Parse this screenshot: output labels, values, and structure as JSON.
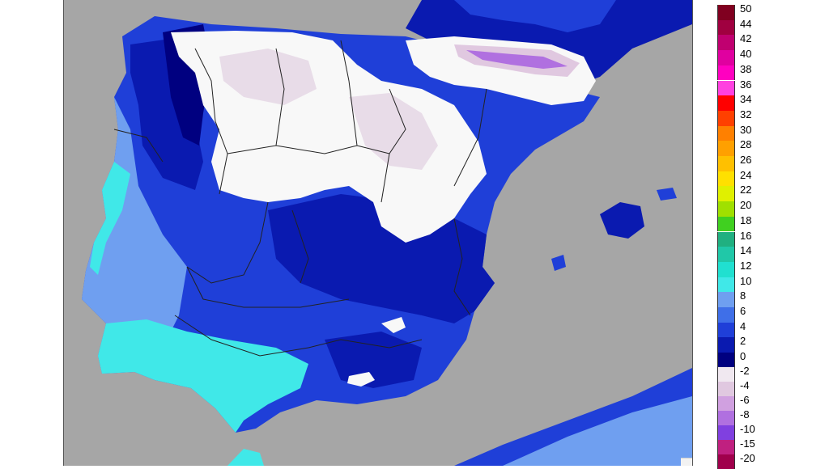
{
  "colors": {
    "background": "#a6a6a6",
    "land_frost_white": "#f8f8f8",
    "land_frost_lilac": "#e0d0e0",
    "land_frost_purple": "#b080d0",
    "temp_0_2": "#000080",
    "temp_2_4": "#0a1ab0",
    "temp_4_6": "#1f3fd8",
    "temp_6_8": "#3f6fe8",
    "temp_8_10": "#6f9ff0",
    "temp_10_12": "#40e8e8",
    "border_lines": "#222222"
  },
  "legend": {
    "positive_scale": [
      {
        "label": "50",
        "color": "#800020"
      },
      {
        "label": "44",
        "color": "#a00040"
      },
      {
        "label": "42",
        "color": "#c00070"
      },
      {
        "label": "40",
        "color": "#e000a0"
      },
      {
        "label": "38",
        "color": "#ff00c0"
      },
      {
        "label": "36",
        "color": "#ff40e0"
      },
      {
        "label": "34",
        "color": "#ff0000"
      },
      {
        "label": "32",
        "color": "#ff4000"
      },
      {
        "label": "30",
        "color": "#ff8000"
      },
      {
        "label": "28",
        "color": "#ffa000"
      },
      {
        "label": "26",
        "color": "#ffc000"
      },
      {
        "label": "24",
        "color": "#ffe000"
      },
      {
        "label": "22",
        "color": "#e0f000"
      },
      {
        "label": "20",
        "color": "#a0e000"
      },
      {
        "label": "18",
        "color": "#40d020"
      },
      {
        "label": "16",
        "color": "#20b080"
      },
      {
        "label": "14",
        "color": "#20c8a8"
      },
      {
        "label": "12",
        "color": "#20e0d0"
      },
      {
        "label": "10",
        "color": "#40e8e8"
      },
      {
        "label": "8",
        "color": "#6f9ff0"
      },
      {
        "label": "6",
        "color": "#3f6fe8"
      },
      {
        "label": "4",
        "color": "#1f3fd8"
      },
      {
        "label": "2",
        "color": "#0a1ab0"
      },
      {
        "label": "0",
        "color": "#000080"
      }
    ],
    "negative_scale": [
      {
        "label": "-2",
        "color": "#f0e8f0"
      },
      {
        "label": "-4",
        "color": "#e0c8e0"
      },
      {
        "label": "-6",
        "color": "#d0a0e0"
      },
      {
        "label": "-8",
        "color": "#b070e0"
      },
      {
        "label": "-10",
        "color": "#8040e0"
      },
      {
        "label": "-15",
        "color": "#c02080"
      },
      {
        "label": "-20",
        "color": "#a0004c"
      }
    ]
  }
}
